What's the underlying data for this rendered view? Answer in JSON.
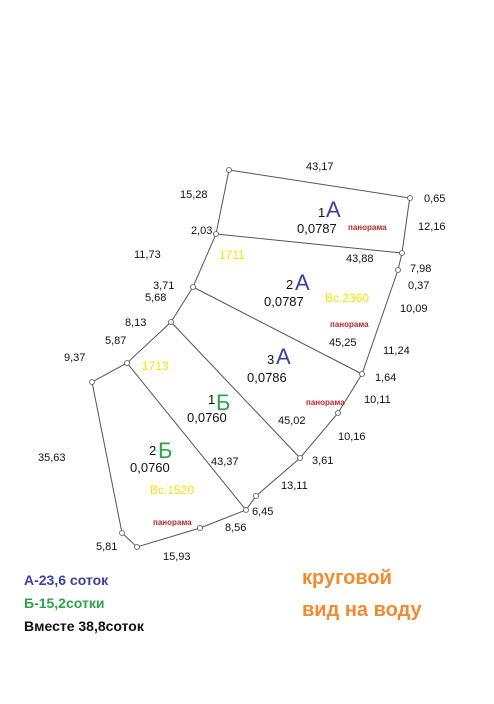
{
  "edges": [
    "43,17",
    "15,28",
    "0,65",
    "12,16",
    "2,03",
    "11,73",
    "43,88",
    "7,98",
    "0,37",
    "3,71",
    "5,68",
    "10,09",
    "8,13",
    "5,87",
    "45,25",
    "11,24",
    "9,37",
    "1,64",
    "10,11",
    "45,02",
    "10,16",
    "35,63",
    "43,37",
    "3,61",
    "13,11",
    "6,45",
    "8,56",
    "5,81",
    "15,93"
  ],
  "cadastral": [
    "1711",
    "1713"
  ],
  "plots": [
    {
      "number": "1",
      "letter": "А",
      "area": "0,0787",
      "note": "панорама"
    },
    {
      "number": "2",
      "letter": "А",
      "area": "0,0787",
      "extra": "Вс.2360",
      "note": "панорама"
    },
    {
      "number": "3",
      "letter": "А",
      "area": "0,0786",
      "note": "панорама"
    },
    {
      "number": "1",
      "letter": "Б",
      "area": "0,0760"
    },
    {
      "number": "2",
      "letter": "Б",
      "area": "0,0760",
      "extra": "Вс.1520",
      "note": "панорама"
    }
  ],
  "legend": [
    "А-23,6 соток",
    "Б-15,2сотки",
    "Вместе 38,8соток"
  ],
  "caption": [
    "круговой",
    "вид на воду"
  ]
}
